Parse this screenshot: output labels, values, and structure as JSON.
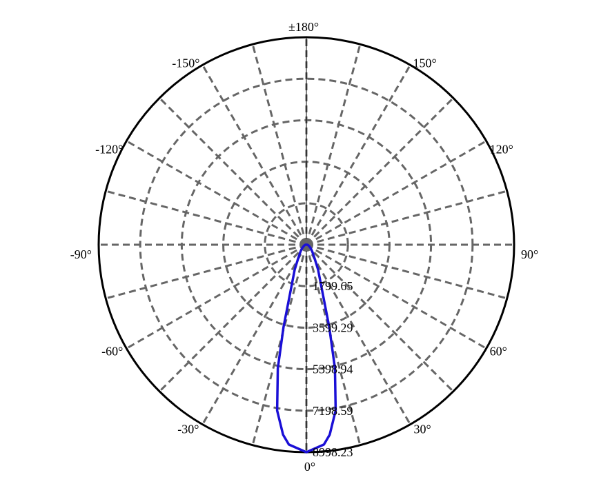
{
  "chart_data": {
    "type": "polar-line",
    "title": "",
    "angle_zero": "bottom",
    "angle_direction": "positive toward right",
    "angle_tick_labels": [
      {
        "angle": 0,
        "label": "0°"
      },
      {
        "angle": 30,
        "label": "30°"
      },
      {
        "angle": 60,
        "label": "60°"
      },
      {
        "angle": 90,
        "label": "90°"
      },
      {
        "angle": 120,
        "label": "120°"
      },
      {
        "angle": 150,
        "label": "150°"
      },
      {
        "angle": 180,
        "label": "±180°"
      },
      {
        "angle": -150,
        "label": "-150°"
      },
      {
        "angle": -120,
        "label": "-120°"
      },
      {
        "angle": -90,
        "label": "-90°"
      },
      {
        "angle": -60,
        "label": "-60°"
      },
      {
        "angle": -30,
        "label": "-30°"
      }
    ],
    "spoke_step_deg": 15,
    "radial_range": [
      0,
      8998.23
    ],
    "radial_tick_labels": [
      "1799.65",
      "3599.29",
      "5398.94",
      "7198.59",
      "8998.23"
    ],
    "radial_ticks": [
      1799.65,
      3599.29,
      5398.94,
      7198.59,
      8998.23
    ],
    "grid": true,
    "series": [
      {
        "color": "#1a0fd6",
        "angles": [
          0,
          5,
          7,
          10,
          13,
          15.5,
          20,
          25,
          30,
          40,
          50,
          60,
          75,
          90,
          120,
          180
        ],
        "values": [
          8998,
          8700,
          8300,
          7300,
          5500,
          3700,
          1850,
          1200,
          750,
          400,
          250,
          150,
          80,
          40,
          0,
          0
        ],
        "symmetric": true
      }
    ],
    "colors": {
      "grid": "#666666",
      "outer_circle": "#000000",
      "curve": "#1a0fd6"
    }
  }
}
